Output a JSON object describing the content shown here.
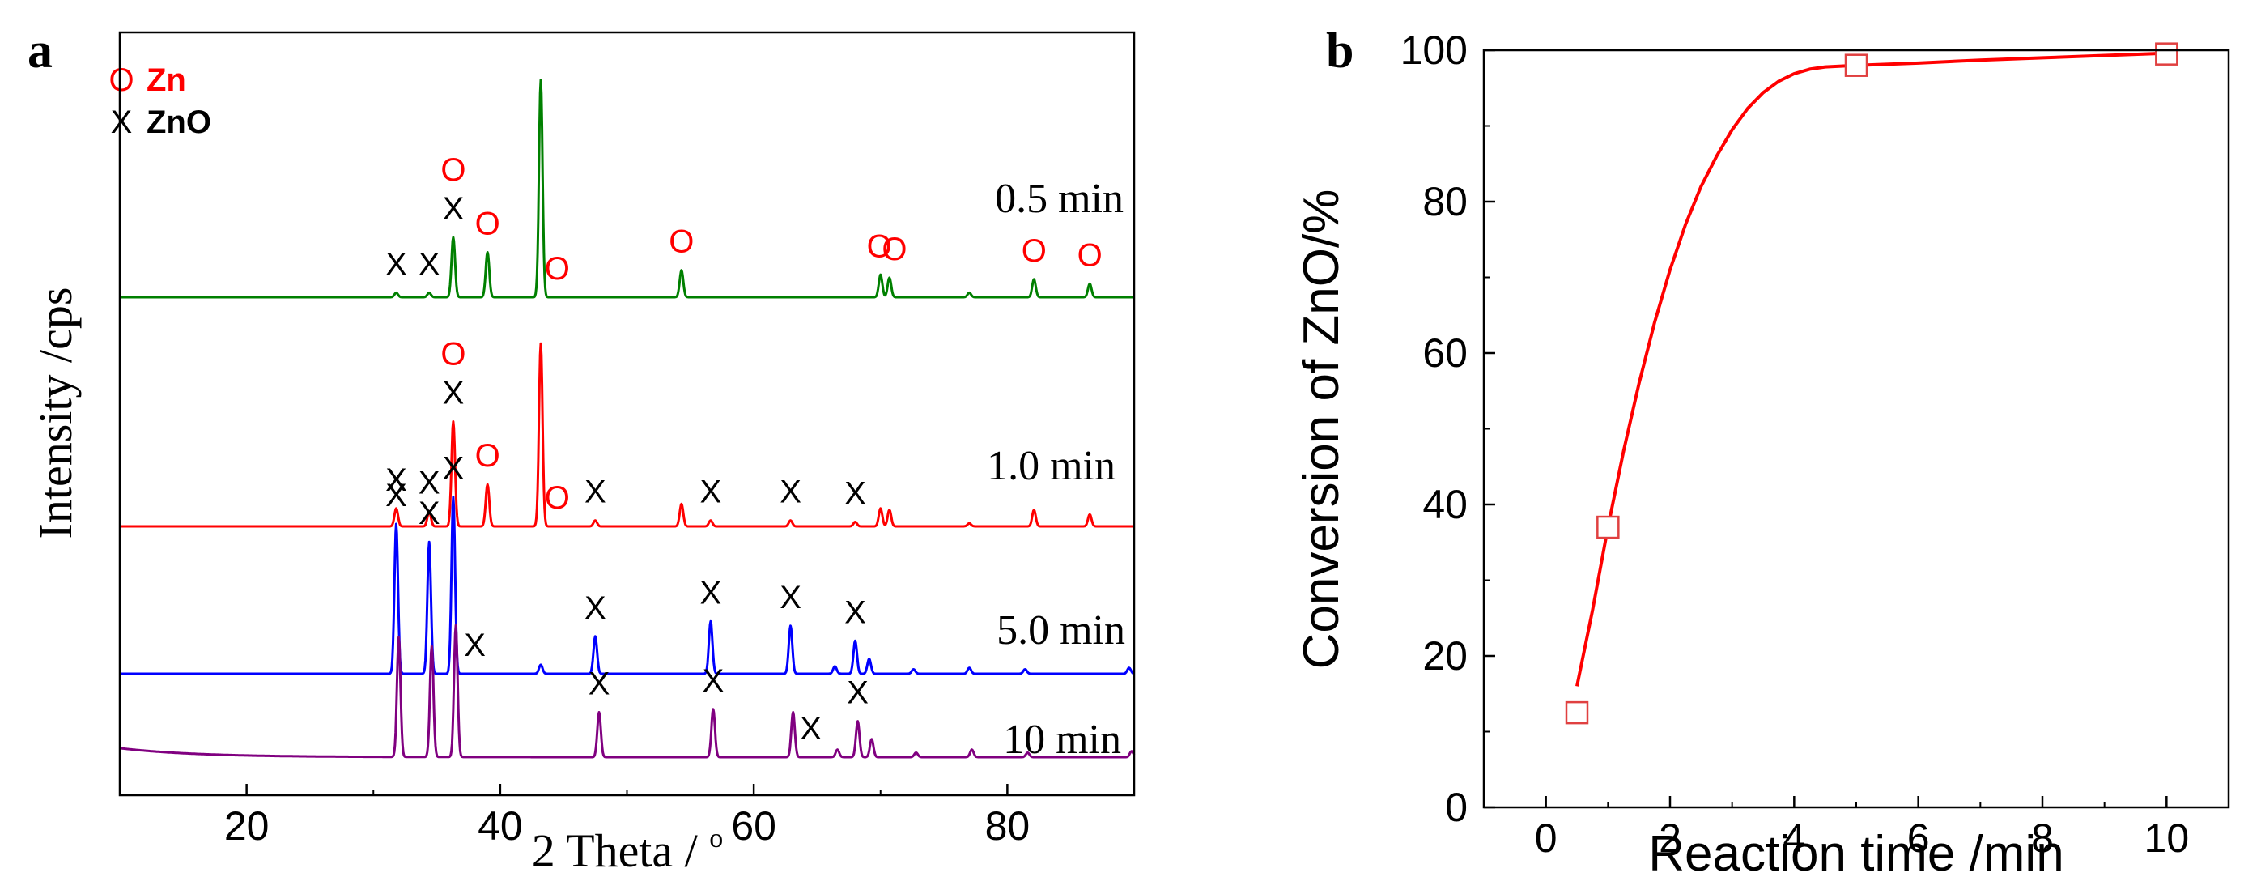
{
  "chart_data": [
    {
      "panel": "a",
      "type": "line",
      "xlabel": "2 Theta / o",
      "ylabel": "Intensity /cps",
      "xlim": [
        10,
        90
      ],
      "xticks": [
        20,
        40,
        60,
        80
      ],
      "legend": {
        "placement": "top-left",
        "entries": [
          {
            "symbol": "O",
            "label": "Zn",
            "color": "#ff0000"
          },
          {
            "symbol": "X",
            "label": "ZnO",
            "color": "#000000"
          }
        ]
      },
      "series": [
        {
          "label": "0.5 min",
          "color": "#008000",
          "peaks": [
            {
              "x": 31.8,
              "h": 3
            },
            {
              "x": 34.4,
              "h": 3
            },
            {
              "x": 36.3,
              "h": 40
            },
            {
              "x": 39.0,
              "h": 30
            },
            {
              "x": 43.2,
              "h": 145
            },
            {
              "x": 54.3,
              "h": 18
            },
            {
              "x": 70.0,
              "h": 15
            },
            {
              "x": 70.7,
              "h": 13
            },
            {
              "x": 77.0,
              "h": 3
            },
            {
              "x": 82.1,
              "h": 12
            },
            {
              "x": 86.5,
              "h": 9
            }
          ],
          "markers": [
            {
              "symbol": "X",
              "x": 31.8
            },
            {
              "symbol": "X",
              "x": 34.4
            },
            {
              "symbol": "X",
              "x": 36.3
            },
            {
              "symbol": "O",
              "x": 36.3
            },
            {
              "symbol": "O",
              "x": 39.0
            },
            {
              "symbol": "O",
              "x": 44.5
            },
            {
              "symbol": "O",
              "x": 54.3
            },
            {
              "symbol": "O",
              "x": 69.9
            },
            {
              "symbol": "O",
              "x": 71.1
            },
            {
              "symbol": "O",
              "x": 82.1
            },
            {
              "symbol": "O",
              "x": 86.5
            }
          ]
        },
        {
          "label": "1.0 min",
          "color": "#ff0000",
          "peaks": [
            {
              "x": 31.8,
              "h": 12
            },
            {
              "x": 34.4,
              "h": 10
            },
            {
              "x": 36.3,
              "h": 70
            },
            {
              "x": 39.0,
              "h": 28
            },
            {
              "x": 43.2,
              "h": 122
            },
            {
              "x": 47.5,
              "h": 4
            },
            {
              "x": 54.3,
              "h": 15
            },
            {
              "x": 56.6,
              "h": 4
            },
            {
              "x": 62.9,
              "h": 4
            },
            {
              "x": 68.0,
              "h": 3
            },
            {
              "x": 70.0,
              "h": 12
            },
            {
              "x": 70.7,
              "h": 11
            },
            {
              "x": 77.0,
              "h": 2
            },
            {
              "x": 82.1,
              "h": 11
            },
            {
              "x": 86.5,
              "h": 8
            }
          ],
          "markers": [
            {
              "symbol": "X",
              "x": 31.8
            },
            {
              "symbol": "X",
              "x": 34.4
            },
            {
              "symbol": "X",
              "x": 36.3
            },
            {
              "symbol": "O",
              "x": 36.3
            },
            {
              "symbol": "O",
              "x": 39.0
            },
            {
              "symbol": "O",
              "x": 44.5
            },
            {
              "symbol": "X",
              "x": 47.5
            },
            {
              "symbol": "X",
              "x": 56.6
            },
            {
              "symbol": "X",
              "x": 62.9
            },
            {
              "symbol": "X",
              "x": 68.0
            }
          ]
        },
        {
          "label": "5.0 min",
          "color": "#0000ff",
          "peaks": [
            {
              "x": 31.8,
              "h": 100
            },
            {
              "x": 34.4,
              "h": 88
            },
            {
              "x": 36.3,
              "h": 118
            },
            {
              "x": 43.2,
              "h": 6
            },
            {
              "x": 47.5,
              "h": 25
            },
            {
              "x": 56.6,
              "h": 35
            },
            {
              "x": 62.9,
              "h": 32
            },
            {
              "x": 66.4,
              "h": 5
            },
            {
              "x": 68.0,
              "h": 22
            },
            {
              "x": 69.1,
              "h": 10
            },
            {
              "x": 72.6,
              "h": 3
            },
            {
              "x": 77.0,
              "h": 4
            },
            {
              "x": 81.4,
              "h": 3
            },
            {
              "x": 89.6,
              "h": 4
            }
          ],
          "markers": [
            {
              "symbol": "X",
              "x": 31.8
            },
            {
              "symbol": "X",
              "x": 34.4
            },
            {
              "symbol": "X",
              "x": 36.3
            },
            {
              "symbol": "X",
              "x": 38.0
            },
            {
              "symbol": "X",
              "x": 47.5
            },
            {
              "symbol": "X",
              "x": 56.6
            },
            {
              "symbol": "X",
              "x": 62.9
            },
            {
              "symbol": "X",
              "x": 68.0
            }
          ]
        },
        {
          "label": "10 min",
          "color": "#800080",
          "peaks": [
            {
              "x": 32.0,
              "h": 80
            },
            {
              "x": 34.6,
              "h": 74
            },
            {
              "x": 36.5,
              "h": 88
            },
            {
              "x": 47.8,
              "h": 30
            },
            {
              "x": 56.8,
              "h": 32
            },
            {
              "x": 63.1,
              "h": 30
            },
            {
              "x": 66.6,
              "h": 5
            },
            {
              "x": 68.2,
              "h": 24
            },
            {
              "x": 69.3,
              "h": 12
            },
            {
              "x": 72.8,
              "h": 3
            },
            {
              "x": 77.2,
              "h": 5
            },
            {
              "x": 81.6,
              "h": 3
            },
            {
              "x": 89.8,
              "h": 4
            }
          ],
          "markers": [
            {
              "symbol": "X",
              "x": 47.8
            },
            {
              "symbol": "X",
              "x": 56.8
            },
            {
              "symbol": "X",
              "x": 64.5
            },
            {
              "symbol": "X",
              "x": 68.2
            }
          ]
        }
      ]
    },
    {
      "panel": "b",
      "type": "scatter",
      "xlabel": "Reaction time /min",
      "ylabel": "Conversion of ZnO/%",
      "xlim": [
        -1,
        11
      ],
      "ylim": [
        0,
        100
      ],
      "xticks": [
        0,
        2,
        4,
        6,
        8,
        10
      ],
      "yticks": [
        0,
        20,
        40,
        60,
        80,
        100
      ],
      "grid": false,
      "marker_color": "#e04040",
      "fit_color": "#ff0000",
      "points": [
        {
          "x": 0.5,
          "y": 12.5
        },
        {
          "x": 1.0,
          "y": 37
        },
        {
          "x": 5.0,
          "y": 98
        },
        {
          "x": 10.0,
          "y": 99.5
        }
      ],
      "fit_curve": [
        [
          0.5,
          16
        ],
        [
          0.75,
          26
        ],
        [
          1.0,
          37
        ],
        [
          1.25,
          47
        ],
        [
          1.5,
          56
        ],
        [
          1.75,
          64
        ],
        [
          2.0,
          71
        ],
        [
          2.25,
          77
        ],
        [
          2.5,
          82
        ],
        [
          2.75,
          86
        ],
        [
          3.0,
          89.5
        ],
        [
          3.25,
          92.3
        ],
        [
          3.5,
          94.4
        ],
        [
          3.75,
          95.9
        ],
        [
          4.0,
          96.9
        ],
        [
          4.25,
          97.5
        ],
        [
          4.5,
          97.8
        ],
        [
          5.0,
          98
        ],
        [
          6.0,
          98.3
        ],
        [
          7.0,
          98.7
        ],
        [
          8.0,
          99.0
        ],
        [
          9.0,
          99.3
        ],
        [
          10.0,
          99.6
        ]
      ]
    }
  ]
}
